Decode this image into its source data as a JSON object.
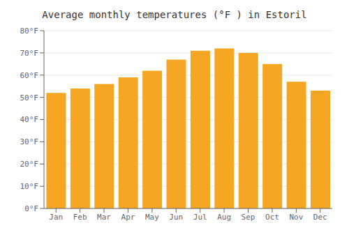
{
  "chart_data": {
    "type": "bar",
    "title": "Average monthly temperatures (°F ) in Estoril",
    "categories": [
      "Jan",
      "Feb",
      "Mar",
      "Apr",
      "May",
      "Jun",
      "Jul",
      "Aug",
      "Sep",
      "Oct",
      "Nov",
      "Dec"
    ],
    "values": [
      52,
      54,
      56,
      59,
      62,
      67,
      71,
      72,
      70,
      65,
      57,
      53
    ],
    "color": "#F5A623",
    "ylim": [
      0,
      80
    ],
    "yticks": [
      {
        "value": 0,
        "label": "0°F"
      },
      {
        "value": 10,
        "label": "10°F"
      },
      {
        "value": 20,
        "label": "20°F"
      },
      {
        "value": 30,
        "label": "30°F"
      },
      {
        "value": 40,
        "label": "40°F"
      },
      {
        "value": 50,
        "label": "50°F"
      },
      {
        "value": 60,
        "label": "60°F"
      },
      {
        "value": 70,
        "label": "70°F"
      },
      {
        "value": 80,
        "label": "80°F"
      }
    ],
    "grid": true
  }
}
